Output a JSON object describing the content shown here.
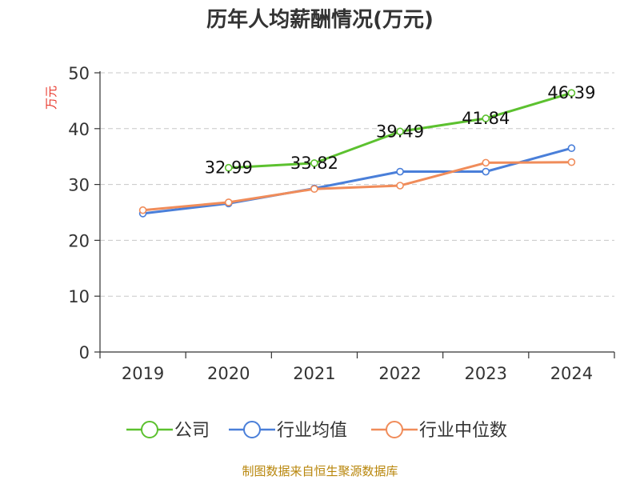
{
  "chart_data": {
    "type": "line",
    "title": "历年人均薪酬情况(万元)",
    "ylabel": "万元",
    "xlabel": "",
    "categories": [
      "2019",
      "2020",
      "2021",
      "2022",
      "2023",
      "2024"
    ],
    "ylim": [
      0,
      50
    ],
    "yticks": [
      0,
      10,
      20,
      30,
      40,
      50
    ],
    "grid": true,
    "legend_position": "bottom",
    "series": [
      {
        "name": "公司",
        "color": "#5cc12f",
        "values": [
          null,
          32.99,
          33.82,
          39.49,
          41.84,
          46.39
        ],
        "show_labels": true
      },
      {
        "name": "行业均值",
        "color": "#4a7fd9",
        "values": [
          24.8,
          26.6,
          29.3,
          32.3,
          32.3,
          36.5
        ],
        "show_labels": false
      },
      {
        "name": "行业中位数",
        "color": "#f08c5a",
        "values": [
          25.4,
          26.8,
          29.2,
          29.8,
          33.9,
          34.0
        ],
        "show_labels": false
      }
    ]
  },
  "footer": {
    "source": "制图数据来自恒生聚源数据库"
  }
}
